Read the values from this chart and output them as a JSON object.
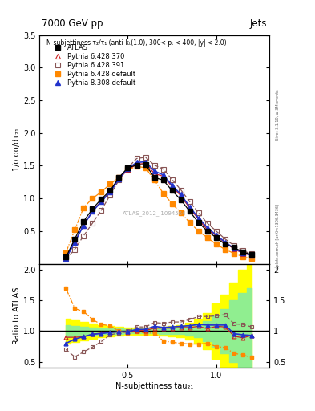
{
  "title_top": "7000 GeV pp",
  "title_right": "Jets",
  "annotation": "N-subjettiness τ₂/τ₁ (anti-kₜ(1.0), 300< pₜ < 400, |y| < 2.0)",
  "watermark": "ATLAS_2012_I1094564",
  "right_label": "Rivet 3.1.10, ≥ 3M events",
  "arxiv_label": "mcplots.cern.ch [arXiv:1306.3436]",
  "ylabel_main": "1/σ dσ/dτ₂₁",
  "ylabel_ratio": "Ratio to ATLAS",
  "xlabel": "N-subjettiness tau₂₁",
  "ylim_main": [
    0,
    3.5
  ],
  "ylim_ratio": [
    0.4,
    2.1
  ],
  "yticks_main": [
    0.5,
    1.0,
    1.5,
    2.0,
    2.5,
    3.0,
    3.5
  ],
  "yticks_ratio": [
    0.5,
    1.0,
    1.5,
    2.0
  ],
  "xlim": [
    0,
    1.3
  ],
  "xticks_main": [
    0.5,
    1.0
  ],
  "xticks_ratio": [
    0.5,
    1.0
  ],
  "atlas_x": [
    0.15,
    0.2,
    0.25,
    0.3,
    0.35,
    0.4,
    0.45,
    0.5,
    0.55,
    0.6,
    0.65,
    0.7,
    0.75,
    0.8,
    0.85,
    0.9,
    0.95,
    1.0,
    1.05,
    1.1,
    1.15,
    1.2
  ],
  "atlas_y": [
    0.1,
    0.38,
    0.65,
    0.84,
    0.99,
    1.12,
    1.32,
    1.47,
    1.51,
    1.52,
    1.32,
    1.28,
    1.12,
    0.98,
    0.8,
    0.63,
    0.5,
    0.4,
    0.3,
    0.25,
    0.18,
    0.14
  ],
  "p6_370_x": [
    0.15,
    0.2,
    0.25,
    0.3,
    0.35,
    0.4,
    0.45,
    0.5,
    0.55,
    0.6,
    0.65,
    0.7,
    0.75,
    0.8,
    0.85,
    0.9,
    0.95,
    1.0,
    1.05,
    1.1,
    1.15,
    1.2
  ],
  "p6_370_y": [
    0.09,
    0.34,
    0.59,
    0.8,
    0.96,
    1.1,
    1.3,
    1.44,
    1.52,
    1.54,
    1.38,
    1.34,
    1.18,
    1.04,
    0.85,
    0.68,
    0.52,
    0.43,
    0.32,
    0.23,
    0.16,
    0.13
  ],
  "p6_391_x": [
    0.15,
    0.2,
    0.25,
    0.3,
    0.35,
    0.4,
    0.45,
    0.5,
    0.55,
    0.6,
    0.65,
    0.7,
    0.75,
    0.8,
    0.85,
    0.9,
    0.95,
    1.0,
    1.05,
    1.1,
    1.15,
    1.2
  ],
  "p6_391_y": [
    0.07,
    0.22,
    0.43,
    0.62,
    0.82,
    1.05,
    1.28,
    1.47,
    1.61,
    1.63,
    1.51,
    1.45,
    1.29,
    1.13,
    0.95,
    0.78,
    0.62,
    0.5,
    0.38,
    0.28,
    0.2,
    0.15
  ],
  "p6_def_x": [
    0.15,
    0.2,
    0.25,
    0.3,
    0.35,
    0.4,
    0.45,
    0.5,
    0.55,
    0.6,
    0.65,
    0.7,
    0.75,
    0.8,
    0.85,
    0.9,
    0.95,
    1.0,
    1.05,
    1.1,
    1.15,
    1.2
  ],
  "p6_def_y": [
    0.17,
    0.52,
    0.86,
    1.0,
    1.1,
    1.22,
    1.32,
    1.44,
    1.49,
    1.47,
    1.28,
    1.08,
    0.92,
    0.78,
    0.63,
    0.5,
    0.4,
    0.3,
    0.22,
    0.16,
    0.11,
    0.08
  ],
  "p8_def_x": [
    0.15,
    0.2,
    0.25,
    0.3,
    0.35,
    0.4,
    0.45,
    0.5,
    0.55,
    0.6,
    0.65,
    0.7,
    0.75,
    0.8,
    0.85,
    0.9,
    0.95,
    1.0,
    1.05,
    1.1,
    1.15,
    1.2
  ],
  "p8_def_y": [
    0.08,
    0.33,
    0.59,
    0.8,
    0.95,
    1.1,
    1.3,
    1.46,
    1.55,
    1.56,
    1.42,
    1.36,
    1.2,
    1.06,
    0.87,
    0.7,
    0.55,
    0.44,
    0.33,
    0.24,
    0.17,
    0.13
  ],
  "atlas_color": "#000000",
  "p6_370_color": "#cc2222",
  "p6_391_color": "#885555",
  "p6_def_color": "#ff8800",
  "p8_def_color": "#2233cc",
  "ratio_x": [
    0.15,
    0.2,
    0.25,
    0.3,
    0.35,
    0.4,
    0.45,
    0.5,
    0.55,
    0.6,
    0.65,
    0.7,
    0.75,
    0.8,
    0.85,
    0.9,
    0.95,
    1.0,
    1.05,
    1.1,
    1.15,
    1.2
  ],
  "ratio_p6_370": [
    0.9,
    0.9,
    0.91,
    0.95,
    0.97,
    0.98,
    0.99,
    0.98,
    1.01,
    1.01,
    1.05,
    1.05,
    1.05,
    1.06,
    1.06,
    1.08,
    1.04,
    1.08,
    1.07,
    0.92,
    0.89,
    0.93
  ],
  "ratio_p6_391": [
    0.7,
    0.58,
    0.66,
    0.74,
    0.83,
    0.94,
    0.97,
    1.0,
    1.07,
    1.07,
    1.14,
    1.13,
    1.15,
    1.15,
    1.19,
    1.24,
    1.24,
    1.25,
    1.27,
    1.12,
    1.11,
    1.07
  ],
  "ratio_p6_def": [
    1.7,
    1.37,
    1.32,
    1.19,
    1.11,
    1.09,
    1.0,
    0.98,
    0.99,
    0.97,
    0.97,
    0.84,
    0.82,
    0.8,
    0.79,
    0.79,
    0.8,
    0.75,
    0.73,
    0.64,
    0.61,
    0.57
  ],
  "ratio_p8_def": [
    0.8,
    0.87,
    0.91,
    0.95,
    0.96,
    0.98,
    0.99,
    0.99,
    1.03,
    1.03,
    1.08,
    1.06,
    1.07,
    1.08,
    1.09,
    1.11,
    1.1,
    1.1,
    1.1,
    0.96,
    0.94,
    0.93
  ],
  "band_x": [
    0.15,
    0.2,
    0.25,
    0.3,
    0.35,
    0.4,
    0.45,
    0.5,
    0.55,
    0.6,
    0.65,
    0.7,
    0.75,
    0.8,
    0.85,
    0.9,
    0.95,
    1.0,
    1.05,
    1.1,
    1.15,
    1.2
  ],
  "band_yellow_upper": [
    1.2,
    1.18,
    1.15,
    1.12,
    1.1,
    1.08,
    1.07,
    1.06,
    1.06,
    1.06,
    1.06,
    1.07,
    1.08,
    1.1,
    1.14,
    1.2,
    1.3,
    1.45,
    1.6,
    1.8,
    2.0,
    2.1
  ],
  "band_yellow_lower": [
    0.8,
    0.82,
    0.85,
    0.88,
    0.9,
    0.92,
    0.93,
    0.94,
    0.94,
    0.94,
    0.94,
    0.93,
    0.92,
    0.9,
    0.86,
    0.8,
    0.7,
    0.55,
    0.4,
    0.2,
    0.1,
    0.1
  ],
  "band_green_upper": [
    1.1,
    1.09,
    1.07,
    1.06,
    1.05,
    1.04,
    1.04,
    1.03,
    1.03,
    1.03,
    1.03,
    1.04,
    1.04,
    1.05,
    1.07,
    1.1,
    1.16,
    1.26,
    1.36,
    1.5,
    1.62,
    1.7
  ],
  "band_green_lower": [
    0.9,
    0.91,
    0.93,
    0.94,
    0.95,
    0.96,
    0.96,
    0.97,
    0.97,
    0.97,
    0.97,
    0.96,
    0.96,
    0.95,
    0.93,
    0.9,
    0.84,
    0.74,
    0.64,
    0.5,
    0.38,
    0.3
  ]
}
